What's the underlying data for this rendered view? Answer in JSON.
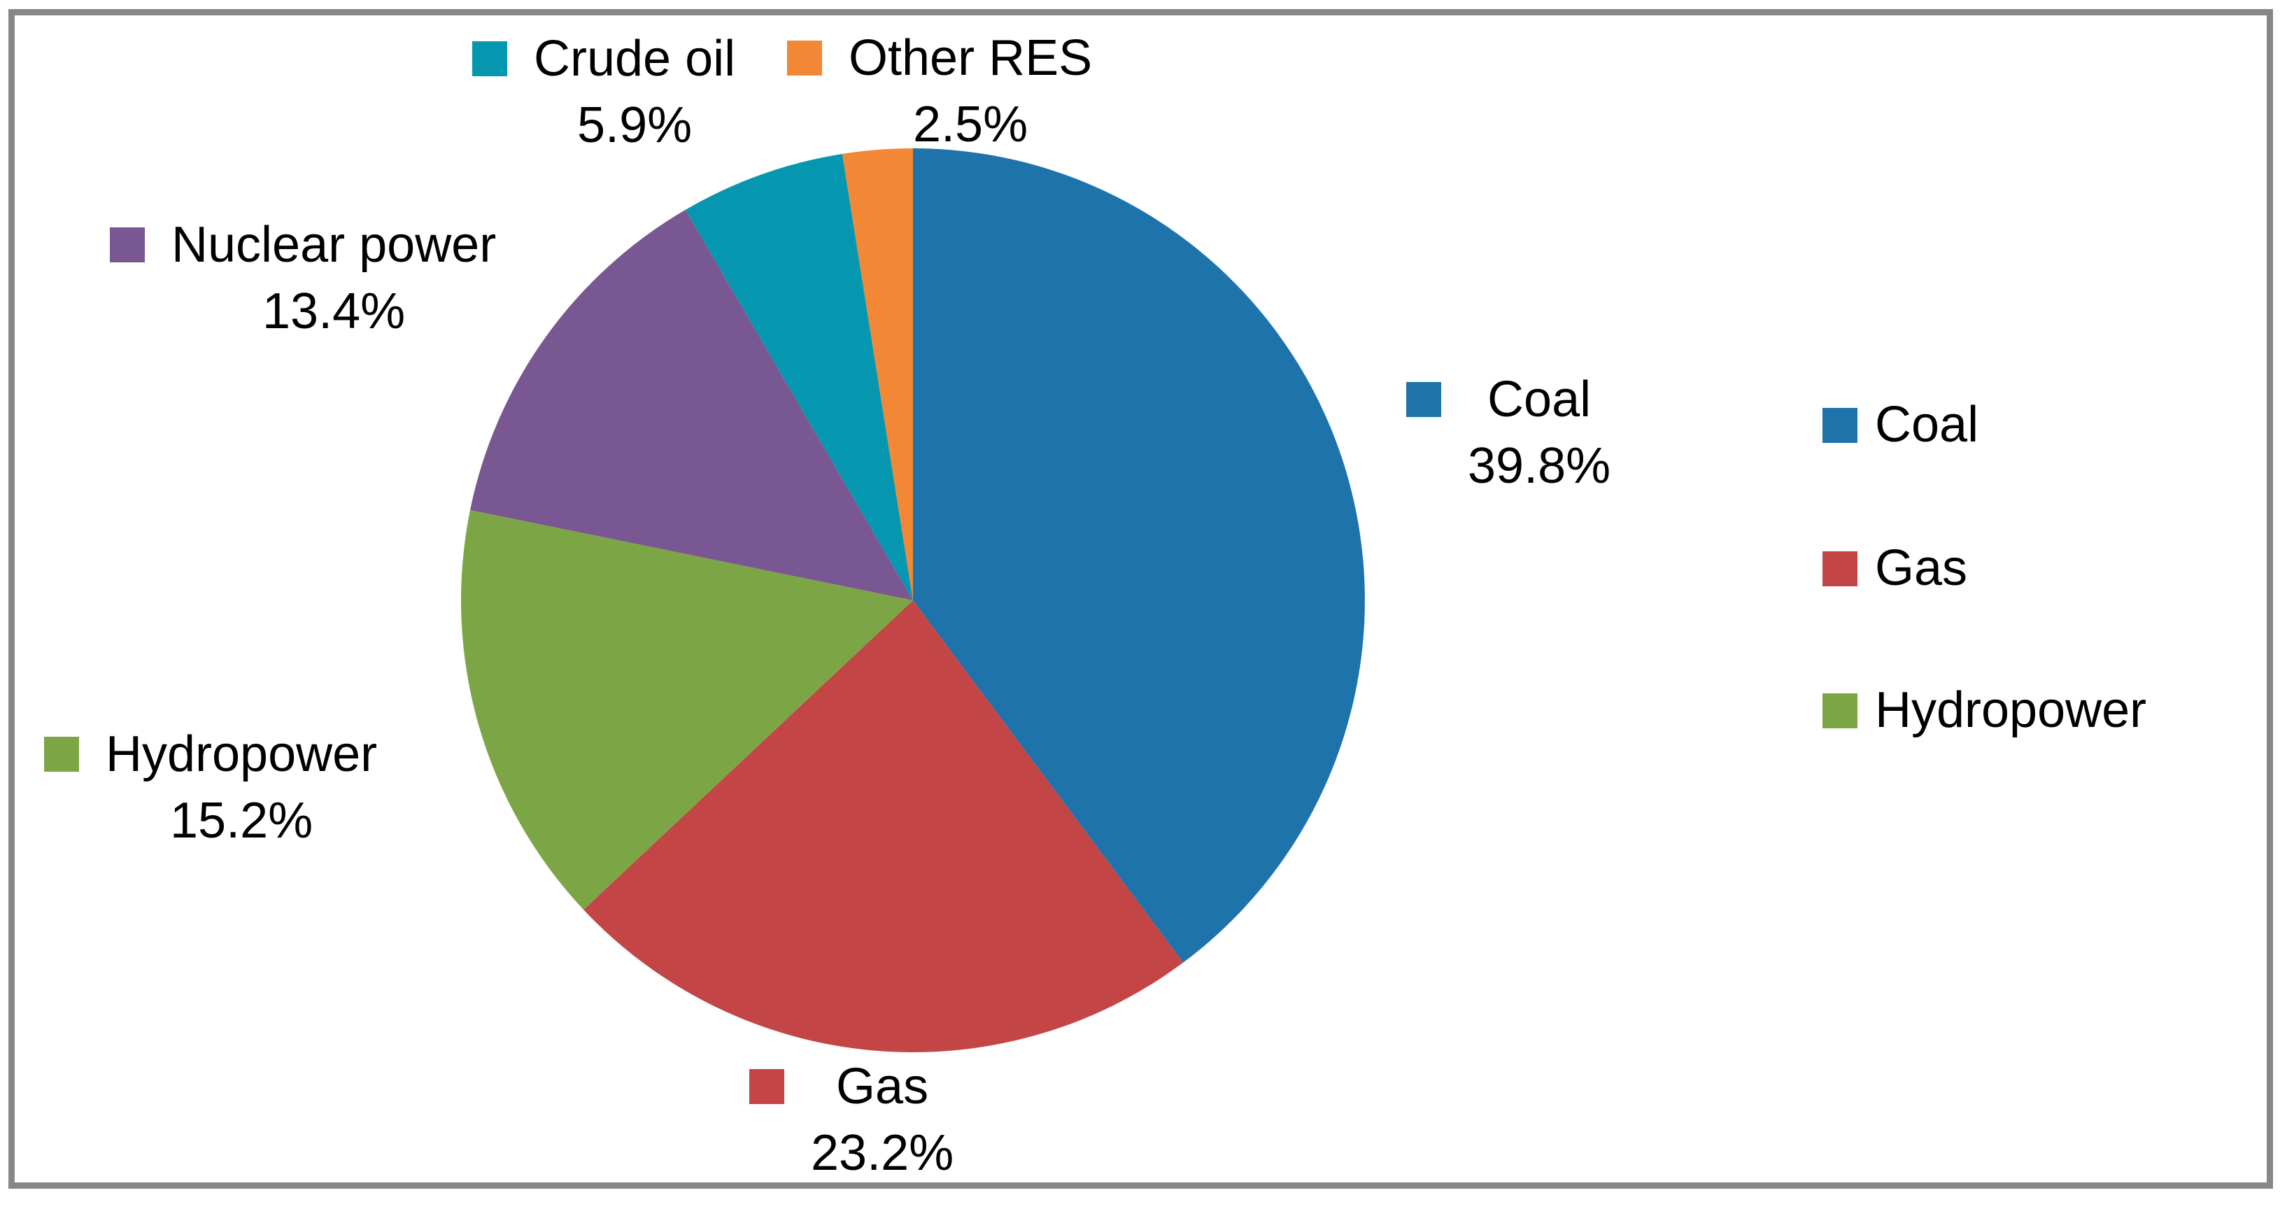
{
  "chart_data": {
    "type": "pie",
    "categories": [
      "Coal",
      "Gas",
      "Hydropower",
      "Nuclear power",
      "Crude oil",
      "Other RES"
    ],
    "values": [
      39.8,
      23.2,
      15.2,
      13.4,
      5.9,
      2.5
    ],
    "percent_labels": [
      "39.8%",
      "23.2%",
      "15.2%",
      "13.4%",
      "5.9%",
      "2.5%"
    ],
    "colors": [
      "#1E73AB",
      "#C44545",
      "#7CA646",
      "#795792",
      "#0697B0",
      "#F28735"
    ],
    "title": "",
    "start_angle": "12 o'clock",
    "direction": "clockwise",
    "data_label_style": "outside, legend key + category name + percent",
    "legend": {
      "position": "right",
      "entries": [
        "Coal",
        "Gas",
        "Hydropower"
      ]
    },
    "frame_color": "#878787",
    "text_color": "#000000",
    "background_color": "#FFFFFF"
  }
}
